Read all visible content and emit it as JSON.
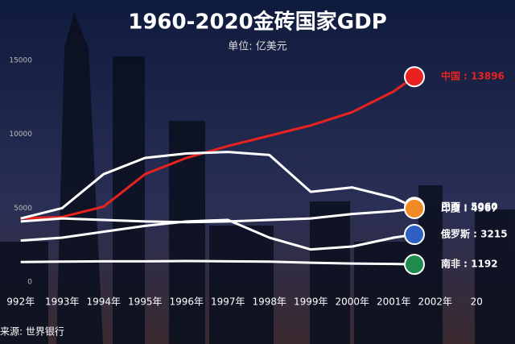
{
  "chart_data": {
    "type": "line",
    "title": "1960-2020金砖国家GDP",
    "subtitle": "单位: 亿美元",
    "source": "来源: 世界银行",
    "x": [
      1992,
      1993,
      1994,
      1995,
      1996,
      1997,
      1998,
      1999,
      2000,
      2001,
      2001.5
    ],
    "xlim": [
      1991.5,
      2003.5
    ],
    "xticks": [
      {
        "value": 1992,
        "label": "992年"
      },
      {
        "value": 1993,
        "label": "1993年"
      },
      {
        "value": 1994,
        "label": "1994年"
      },
      {
        "value": 1995,
        "label": "1995年"
      },
      {
        "value": 1996,
        "label": "1996年"
      },
      {
        "value": 1997,
        "label": "1997年"
      },
      {
        "value": 1998,
        "label": "1998年"
      },
      {
        "value": 1999,
        "label": "1999年"
      },
      {
        "value": 2000,
        "label": "2000年"
      },
      {
        "value": 2001,
        "label": "2001年"
      },
      {
        "value": 2002,
        "label": "2002年"
      },
      {
        "value": 2003,
        "label": "20"
      }
    ],
    "ylim": [
      0,
      15000
    ],
    "yticks": [
      0,
      5000,
      10000,
      15000
    ],
    "grid": false,
    "series": [
      {
        "name": "中国",
        "color": "#e8231f",
        "values": [
          4300,
          4400,
          5100,
          7300,
          8400,
          9200,
          9900,
          10600,
          11500,
          12900,
          13896
        ],
        "value_labels": [
          null,
          null,
          null,
          null,
          null,
          null,
          null,
          null,
          null,
          null,
          "中国 : 13896"
        ]
      },
      {
        "name": "巴西",
        "color": "#ffffff",
        "values": [
          4300,
          5000,
          7300,
          8400,
          8700,
          8800,
          8600,
          6100,
          6400,
          5700,
          5060
        ],
        "value_labels": [
          null,
          null,
          null,
          null,
          null,
          null,
          null,
          null,
          null,
          null,
          "巴西 : 5060"
        ]
      },
      {
        "name": "印度",
        "color": "#ffffff",
        "values": [
          4100,
          4300,
          4200,
          4100,
          4050,
          4100,
          4200,
          4300,
          4600,
          4800,
          4967
        ],
        "value_labels": [
          null,
          null,
          null,
          null,
          null,
          null,
          null,
          null,
          null,
          null,
          "印度 : 4967"
        ]
      },
      {
        "name": "俄罗斯",
        "color": "#ffffff",
        "values": [
          2800,
          3000,
          3400,
          3800,
          4100,
          4200,
          3000,
          2200,
          2400,
          3000,
          3215
        ],
        "value_labels": [
          null,
          null,
          null,
          null,
          null,
          null,
          null,
          null,
          null,
          null,
          "俄罗斯 : 3215"
        ]
      },
      {
        "name": "南非",
        "color": "#ffffff",
        "values": [
          1350,
          1380,
          1400,
          1400,
          1420,
          1400,
          1380,
          1300,
          1250,
          1220,
          1192
        ],
        "value_labels": [
          null,
          null,
          null,
          null,
          null,
          null,
          null,
          null,
          null,
          null,
          "南非 : 1192"
        ]
      }
    ],
    "marker_colors": [
      "#e8231f",
      "#2a9d3a",
      "#f08a24",
      "#2d5fc4",
      "#1f8a4c"
    ]
  }
}
